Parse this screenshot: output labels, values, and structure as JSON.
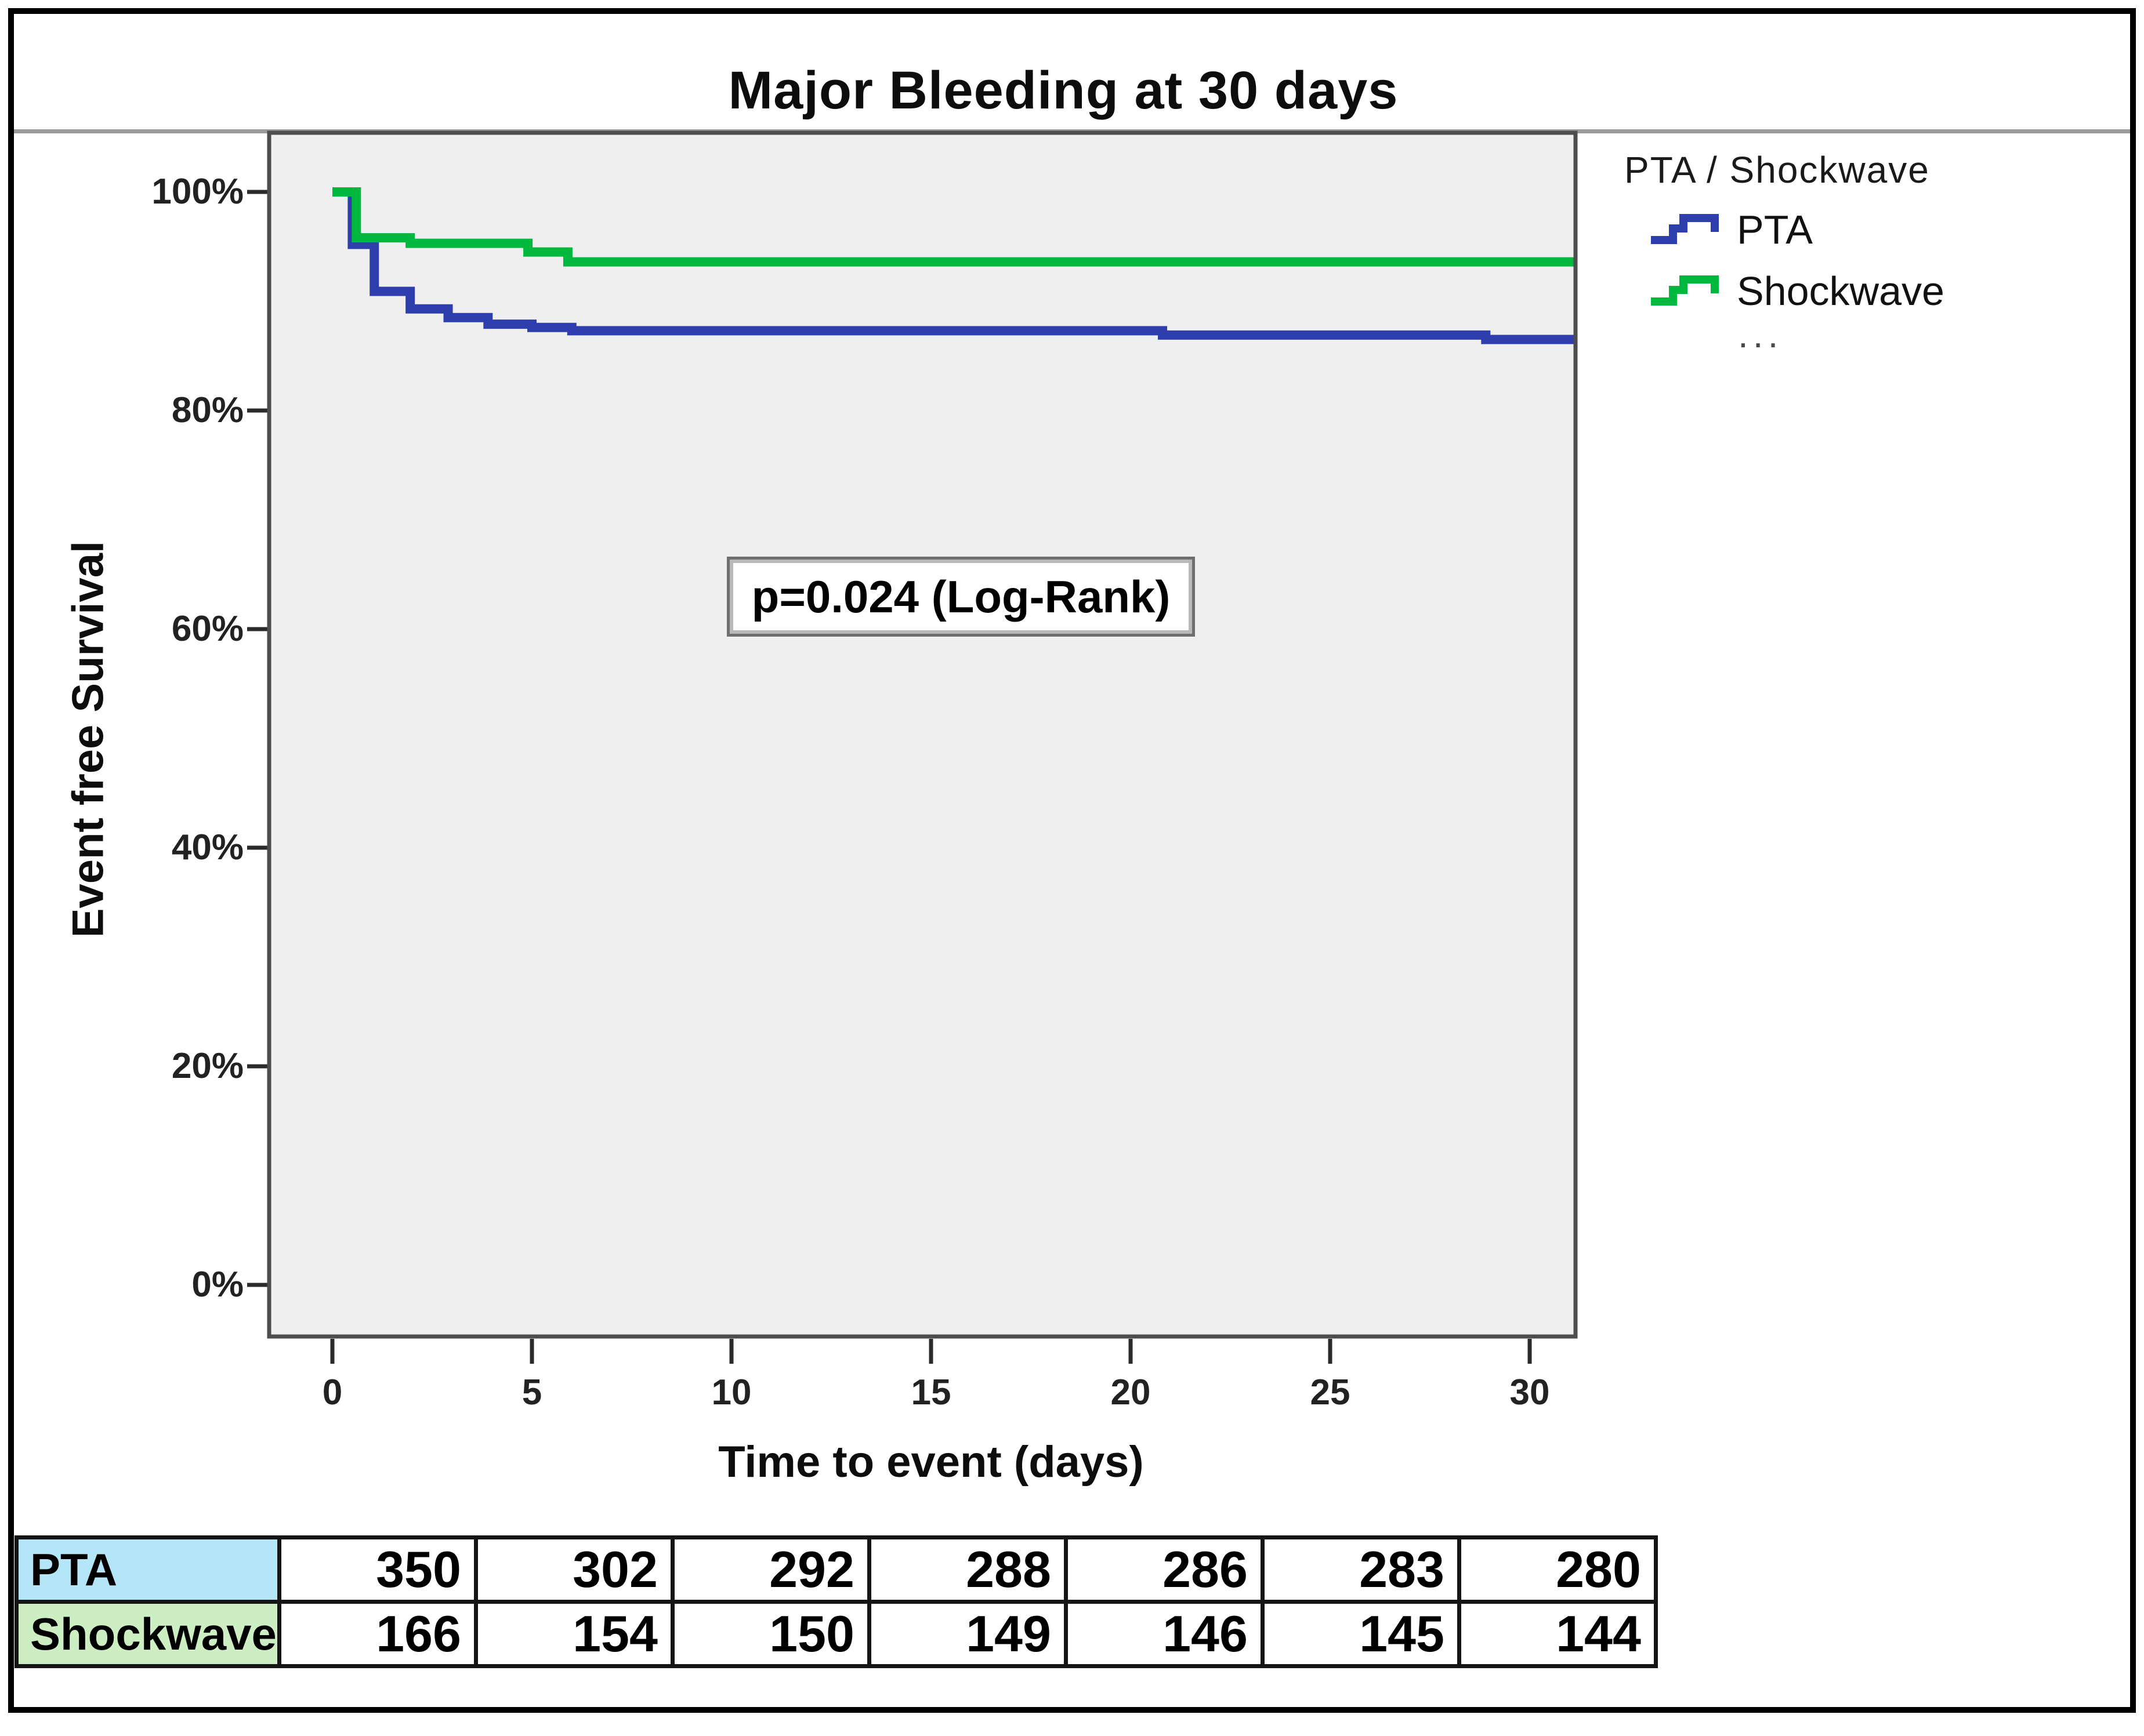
{
  "chart_data": {
    "type": "line",
    "subtype": "kaplan-meier-step",
    "title": "Major Bleeding at 30 days",
    "xlabel": "Time to event (days)",
    "ylabel": "Event free Survival",
    "xlim": [
      -1.6,
      31.2
    ],
    "ylim": [
      -4.7,
      105.4
    ],
    "grid": false,
    "plot_background": "#efefef",
    "legend_position": "right-top",
    "x_ticks": [
      {
        "value": 0,
        "label": "0"
      },
      {
        "value": 5,
        "label": "5"
      },
      {
        "value": 10,
        "label": "10"
      },
      {
        "value": 15,
        "label": "15"
      },
      {
        "value": 20,
        "label": "20"
      },
      {
        "value": 25,
        "label": "25"
      },
      {
        "value": 30,
        "label": "30"
      }
    ],
    "y_ticks": [
      {
        "value": 0,
        "label": "0%"
      },
      {
        "value": 20,
        "label": "20%"
      },
      {
        "value": 40,
        "label": "40%"
      },
      {
        "value": 60,
        "label": "60%"
      },
      {
        "value": 80,
        "label": "80%"
      },
      {
        "value": 100,
        "label": "100%"
      }
    ],
    "annotation": "p=0.024 (Log-Rank)",
    "legend": {
      "title": "PTA / Shockwave",
      "ellipsis": "..."
    },
    "series": [
      {
        "name": "PTA",
        "color": "#2e3ead",
        "end_x": 31.15,
        "points": [
          [
            0,
            100
          ],
          [
            0.5,
            95.2
          ],
          [
            1.05,
            90.9
          ],
          [
            1.95,
            89.3
          ],
          [
            2.9,
            88.5
          ],
          [
            3.9,
            87.9
          ],
          [
            5,
            87.6
          ],
          [
            6,
            87.3
          ],
          [
            20.8,
            86.9
          ],
          [
            28.9,
            86.5
          ]
        ]
      },
      {
        "name": "Shockwave",
        "color": "#00b83d",
        "end_x": 31.15,
        "points": [
          [
            0,
            100
          ],
          [
            0.6,
            95.8
          ],
          [
            1.95,
            95.3
          ],
          [
            4.9,
            94.5
          ],
          [
            5.9,
            93.6
          ]
        ]
      }
    ]
  },
  "risk_table": {
    "rows": [
      {
        "label": "PTA",
        "row_color": "#b5e6f7",
        "values": [
          "350",
          "302",
          "292",
          "288",
          "286",
          "283",
          "280"
        ]
      },
      {
        "label": "Shockwave",
        "row_color": "#cdeec3",
        "values": [
          "166",
          "154",
          "150",
          "149",
          "146",
          "145",
          "144"
        ]
      }
    ]
  }
}
